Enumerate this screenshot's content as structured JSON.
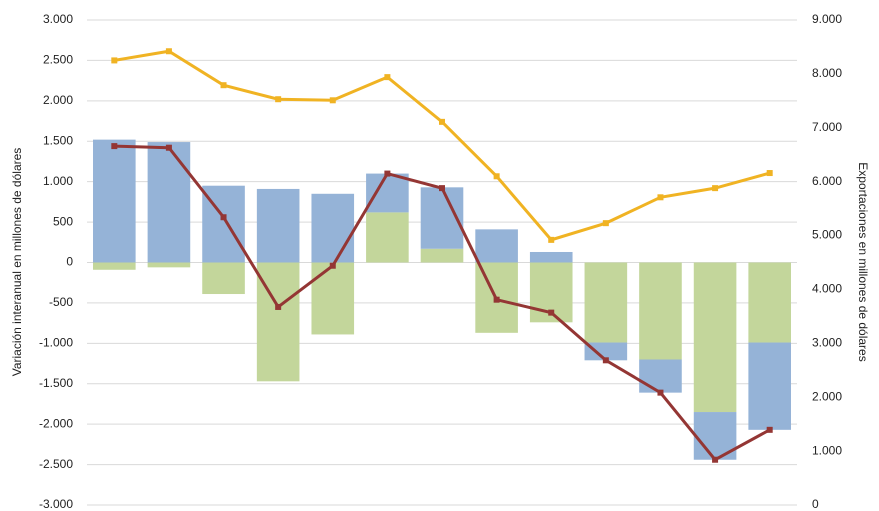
{
  "chart_data": {
    "type": "bar",
    "categories": [
      null,
      null,
      null,
      null,
      null,
      null,
      null,
      null,
      null,
      null,
      null,
      null,
      null
    ],
    "ylabel": "Variación interanual en millones de dólares",
    "y2label": "Exportaciones en millones de dólares",
    "ylim": [
      -3000,
      3000
    ],
    "yticks": [
      {
        "value": -3000,
        "label": "-3.000"
      },
      {
        "value": -2500,
        "label": "-2.500"
      },
      {
        "value": -2000,
        "label": "-2.000"
      },
      {
        "value": -1500,
        "label": "-1.500"
      },
      {
        "value": -1000,
        "label": "-1.000"
      },
      -500,
      0,
      500,
      {
        "value": 1000,
        "label": "1.000"
      },
      {
        "value": 1500,
        "label": "1.500"
      },
      {
        "value": 2000,
        "label": "2.000"
      },
      {
        "value": 2500,
        "label": "2.500"
      },
      {
        "value": 3000,
        "label": "3.000"
      }
    ],
    "y2lim": [
      0,
      9000
    ],
    "y2ticks": [
      0,
      {
        "value": 1000,
        "label": "1.000"
      },
      {
        "value": 2000,
        "label": "2.000"
      },
      {
        "value": 3000,
        "label": "3.000"
      },
      {
        "value": 4000,
        "label": "4.000"
      },
      {
        "value": 5000,
        "label": "5.000"
      },
      {
        "value": 6000,
        "label": "6.000"
      },
      {
        "value": 7000,
        "label": "7.000"
      },
      {
        "value": 8000,
        "label": "8.000"
      },
      {
        "value": 9000,
        "label": "9.000"
      }
    ],
    "grid": true,
    "series": [
      {
        "type": "bar",
        "color": "#c3d69b",
        "values": [
          -90,
          -60,
          -390,
          -1470,
          -890,
          620,
          170,
          -870,
          -740,
          -990,
          -1200,
          -1850,
          -990
        ]
      },
      {
        "type": "bar",
        "color": "#95b3d7",
        "values": [
          1520,
          1490,
          950,
          910,
          850,
          480,
          760,
          410,
          130,
          -220,
          -410,
          -590,
          -1080
        ]
      },
      {
        "type": "line",
        "color": "#943634",
        "values": [
          1440,
          1420,
          560,
          -550,
          -40,
          1100,
          920,
          -460,
          -620,
          -1210,
          -1610,
          -2440,
          -2070
        ]
      },
      {
        "type": "line",
        "color": "#f0b323",
        "axis": "y2",
        "values": [
          8250,
          8420,
          7790,
          7530,
          7510,
          7940,
          7110,
          6100,
          4920,
          5230,
          5710,
          5880,
          6160
        ]
      }
    ]
  }
}
